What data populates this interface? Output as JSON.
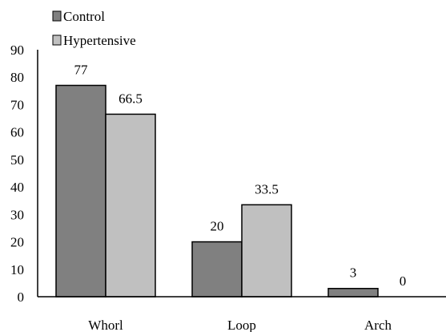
{
  "chart_data": {
    "type": "bar",
    "categories": [
      "Whorl",
      "Loop",
      "Arch"
    ],
    "series": [
      {
        "name": "Control",
        "values": [
          77,
          20,
          3
        ],
        "color": "#808080"
      },
      {
        "name": "Hypertensive",
        "values": [
          66.5,
          33.5,
          0
        ],
        "color": "#c0c0c0"
      }
    ],
    "ylim": [
      0,
      90
    ],
    "yticks": [
      "0",
      "10",
      "20",
      "30",
      "40",
      "50",
      "60",
      "70",
      "80",
      "90"
    ],
    "data_labels": [
      [
        "77",
        "20",
        "3"
      ],
      [
        "66.5",
        "33.5",
        "0"
      ]
    ],
    "legend_position": "top-left",
    "grid": false
  }
}
